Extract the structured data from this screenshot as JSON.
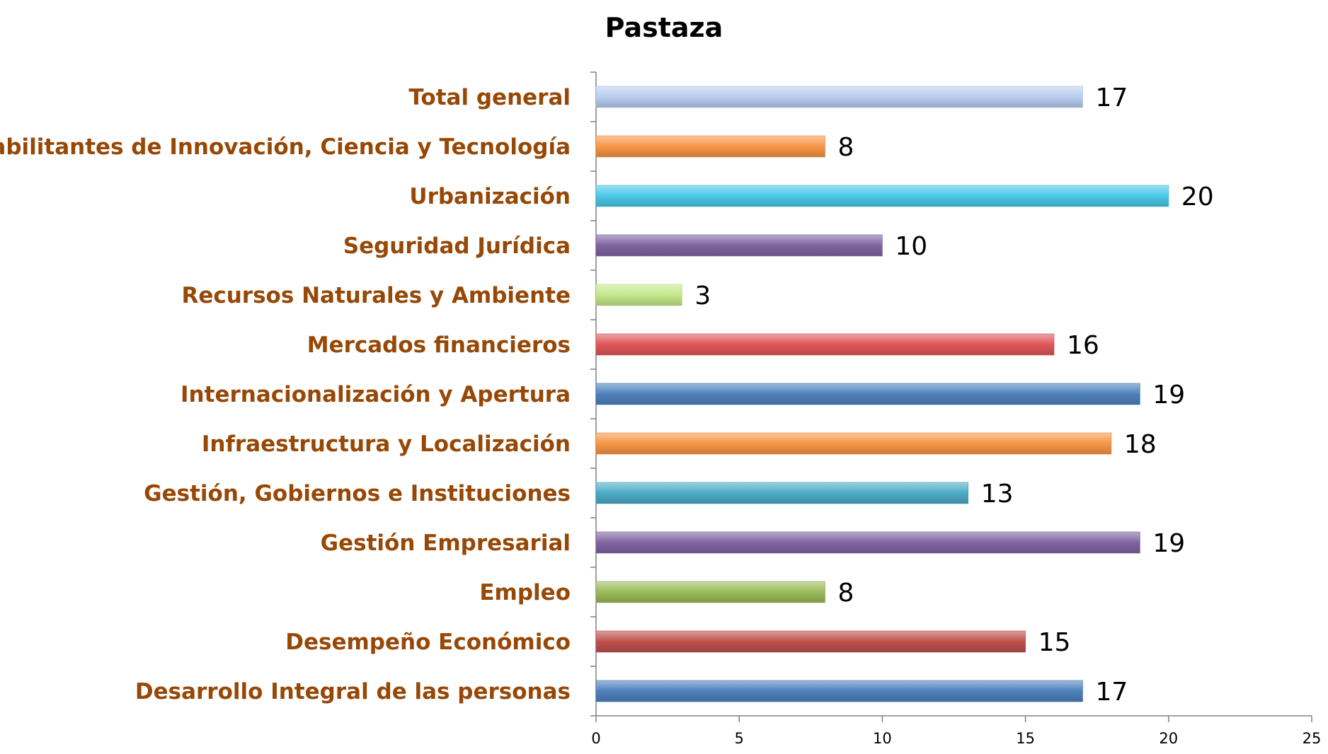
{
  "chart_data": {
    "type": "bar",
    "orientation": "horizontal",
    "title": "Pastaza",
    "xlabel": "",
    "ylabel": "",
    "xlim": [
      0,
      25
    ],
    "x_ticks": [
      "0",
      "5",
      "10",
      "15",
      "20",
      "25"
    ],
    "grid": false,
    "legend": "none",
    "categories": [
      "Total general",
      "Habilitantes de Innovación, Ciencia y Tecnología",
      "Urbanización",
      "Seguridad Jurídica",
      "Recursos Naturales y Ambiente",
      "Mercados financieros",
      "Internacionalización y Apertura",
      "Infraestructura y Localización",
      "Gestión, Gobiernos e Instituciones",
      "Gestión Empresarial",
      "Empleo",
      "Desempeño Económico",
      "Desarrollo Integral de las personas"
    ],
    "values": [
      17,
      8,
      20,
      10,
      3,
      16,
      19,
      18,
      13,
      19,
      8,
      15,
      17
    ],
    "colors": [
      "#b9cdf1",
      "#f79646",
      "#4bc8e8",
      "#8064a2",
      "#c4e88a",
      "#e0585a",
      "#4f81bd",
      "#f79646",
      "#4bacc6",
      "#8064a2",
      "#9bbb59",
      "#c0504d",
      "#4f81bd"
    ],
    "label_color": "#974806"
  }
}
